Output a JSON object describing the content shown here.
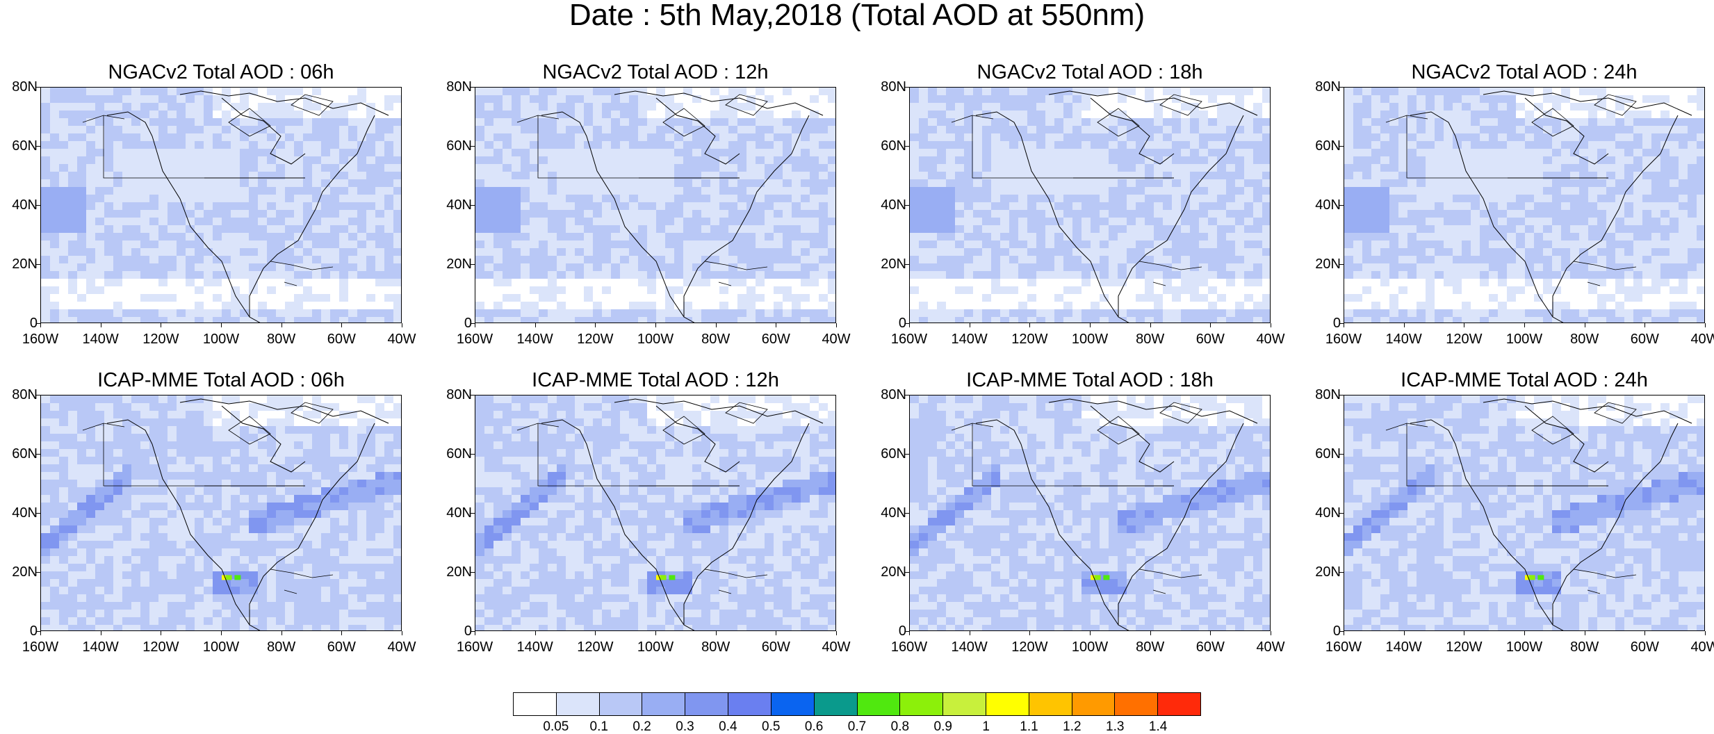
{
  "title": "Date : 5th May,2018 (Total AOD at 550nm)",
  "panels": [
    {
      "title": "NGACv2 Total AOD : 06h",
      "model": "NGACv2",
      "hour": "06h"
    },
    {
      "title": "NGACv2 Total AOD : 12h",
      "model": "NGACv2",
      "hour": "12h"
    },
    {
      "title": "NGACv2 Total AOD : 18h",
      "model": "NGACv2",
      "hour": "18h"
    },
    {
      "title": "NGACv2 Total AOD : 24h",
      "model": "NGACv2",
      "hour": "24h"
    },
    {
      "title": "ICAP-MME Total AOD : 06h",
      "model": "ICAP-MME",
      "hour": "06h"
    },
    {
      "title": "ICAP-MME Total AOD : 12h",
      "model": "ICAP-MME",
      "hour": "12h"
    },
    {
      "title": "ICAP-MME Total AOD : 18h",
      "model": "ICAP-MME",
      "hour": "18h"
    },
    {
      "title": "ICAP-MME Total AOD : 24h",
      "model": "ICAP-MME",
      "hour": "24h"
    }
  ],
  "lat_labels": [
    "80N",
    "60N",
    "40N",
    "20N",
    "0"
  ],
  "lon_labels": [
    "160W",
    "140W",
    "120W",
    "100W",
    "80W",
    "60W",
    "40W"
  ],
  "colorbar": {
    "labels": [
      "0.05",
      "0.1",
      "0.2",
      "0.3",
      "0.4",
      "0.5",
      "0.6",
      "0.7",
      "0.8",
      "0.9",
      "1",
      "1.1",
      "1.2",
      "1.3",
      "1.4"
    ],
    "colors": [
      "#ffffff",
      "#dbe4fa",
      "#b9c8f6",
      "#99aef3",
      "#8096f0",
      "#6a7ff0",
      "#0a64f0",
      "#0a9a8c",
      "#50e80f",
      "#8cf00a",
      "#c8f03c",
      "#ffff00",
      "#ffc400",
      "#ff9a00",
      "#ff7000",
      "#ff2a0a"
    ]
  }
}
